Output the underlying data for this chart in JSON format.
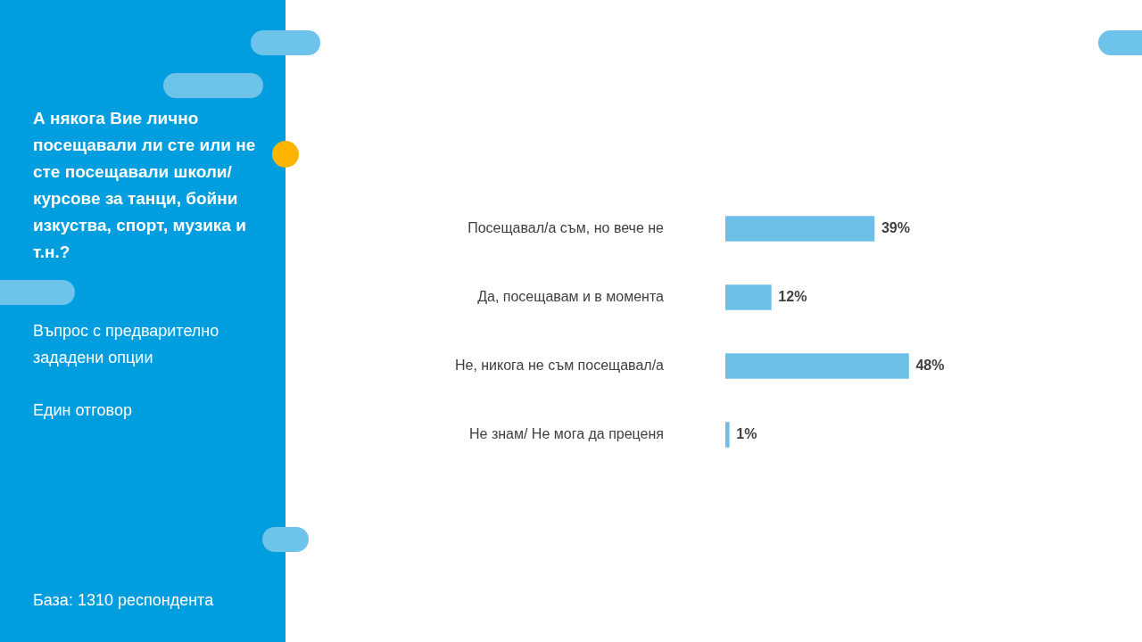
{
  "chart_data": {
    "type": "bar",
    "orientation": "horizontal",
    "title": "А някога Вие лично посещавали ли сте или не сте посещавали школи/ курсове за танци, бойни изкуства, спорт, музика и т.н.?",
    "subtitle": "Въпрос с предварително зададени опции",
    "annotations": [
      "Един отговор",
      "База:  1310 респондента"
    ],
    "categories": [
      "Посещавал/а съм, но вече не",
      "Да, посещавам и в момента",
      "Не, никога не съм посещавал/а",
      "Не знам/ Не мога да преценя"
    ],
    "values": [
      39,
      12,
      48,
      1
    ],
    "color": "#6cc0e8",
    "value_labels": [
      "39%",
      "12%",
      "48%",
      "1%"
    ]
  }
}
